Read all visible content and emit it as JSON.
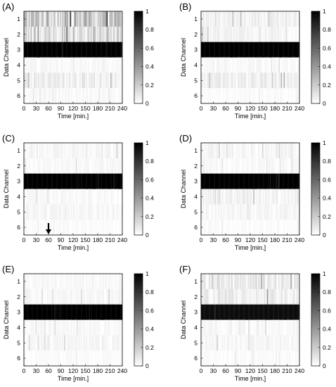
{
  "chart_data": [
    {
      "panel": "(A)",
      "type": "heatmap",
      "xlabel": "Time [min.]",
      "ylabel": "Data Channel",
      "x_ticks": [
        "0",
        "30",
        "60",
        "90",
        "120",
        "150",
        "180",
        "210",
        "240"
      ],
      "y_ticks": [
        "1",
        "2",
        "3",
        "4",
        "5",
        "6"
      ],
      "xlim": [
        0,
        240
      ],
      "channels": [
        1,
        2,
        3,
        4,
        5,
        6
      ],
      "colorbar": {
        "min": 0,
        "max": 1,
        "ticks": [
          "0",
          "0.2",
          "0.4",
          "0.6",
          "0.8",
          "1"
        ]
      },
      "channel_mean_intensity": [
        0.25,
        0.18,
        1.0,
        0.03,
        0.08,
        0.03
      ],
      "annotation": ""
    },
    {
      "panel": "(B)",
      "type": "heatmap",
      "xlabel": "Time [min.]",
      "ylabel": "Data Channel",
      "x_ticks": [
        "0",
        "30",
        "60",
        "90",
        "120",
        "150",
        "180",
        "210",
        "240"
      ],
      "y_ticks": [
        "1",
        "2",
        "3",
        "4",
        "5",
        "6"
      ],
      "xlim": [
        0,
        240
      ],
      "channels": [
        1,
        2,
        3,
        4,
        5,
        6
      ],
      "colorbar": {
        "min": 0,
        "max": 1,
        "ticks": [
          "0",
          "0.2",
          "0.4",
          "0.6",
          "0.8",
          "1"
        ]
      },
      "channel_mean_intensity": [
        0.06,
        0.05,
        1.0,
        0.03,
        0.07,
        0.02
      ],
      "annotation": ""
    },
    {
      "panel": "(C)",
      "type": "heatmap",
      "xlabel": "Time [min.]",
      "ylabel": "Data Channel",
      "x_ticks": [
        "0",
        "30",
        "60",
        "90",
        "120",
        "150",
        "180",
        "210",
        "240"
      ],
      "y_ticks": [
        "1",
        "2",
        "3",
        "4",
        "5",
        "6"
      ],
      "xlim": [
        0,
        240
      ],
      "channels": [
        1,
        2,
        3,
        4,
        5,
        6
      ],
      "colorbar": {
        "min": 0,
        "max": 1,
        "ticks": [
          "0",
          "0.2",
          "0.4",
          "0.6",
          "0.8",
          "1"
        ]
      },
      "channel_mean_intensity": [
        0.04,
        0.03,
        1.0,
        0.03,
        0.04,
        0.02
      ],
      "annotation": "downward arrow at 60 min"
    },
    {
      "panel": "(D)",
      "type": "heatmap",
      "xlabel": "Time [min.]",
      "ylabel": "Data Channel",
      "x_ticks": [
        "0",
        "30",
        "60",
        "90",
        "120",
        "150",
        "180",
        "210",
        "240"
      ],
      "y_ticks": [
        "1",
        "2",
        "3",
        "4",
        "5",
        "6"
      ],
      "xlim": [
        0,
        240
      ],
      "channels": [
        1,
        2,
        3,
        4,
        5,
        6
      ],
      "colorbar": {
        "min": 0,
        "max": 1,
        "ticks": [
          "0",
          "0.2",
          "0.4",
          "0.6",
          "0.8",
          "1"
        ]
      },
      "channel_mean_intensity": [
        0.04,
        0.03,
        1.0,
        0.06,
        0.04,
        0.02
      ],
      "annotation": ""
    },
    {
      "panel": "(E)",
      "type": "heatmap",
      "xlabel": "Time [min.]",
      "ylabel": "Data Channel",
      "x_ticks": [
        "0",
        "30",
        "60",
        "90",
        "120",
        "150",
        "180",
        "210",
        "240"
      ],
      "y_ticks": [
        "1",
        "2",
        "3",
        "4",
        "5",
        "6"
      ],
      "xlim": [
        0,
        240
      ],
      "channels": [
        1,
        2,
        3,
        4,
        5,
        6
      ],
      "colorbar": {
        "min": 0,
        "max": 1,
        "ticks": [
          "0",
          "0.2",
          "0.4",
          "0.6",
          "0.8",
          "1"
        ]
      },
      "channel_mean_intensity": [
        0.03,
        0.04,
        1.0,
        0.03,
        0.04,
        0.02
      ],
      "annotation": ""
    },
    {
      "panel": "(F)",
      "type": "heatmap",
      "xlabel": "Time [min.]",
      "ylabel": "Data Channel",
      "x_ticks": [
        "0",
        "30",
        "60",
        "90",
        "120",
        "150",
        "180",
        "210",
        "240"
      ],
      "y_ticks": [
        "1",
        "2",
        "3",
        "4",
        "5",
        "6"
      ],
      "xlim": [
        0,
        240
      ],
      "channels": [
        1,
        2,
        3,
        4,
        5,
        6
      ],
      "colorbar": {
        "min": 0,
        "max": 1,
        "ticks": [
          "0",
          "0.2",
          "0.4",
          "0.6",
          "0.8",
          "1"
        ]
      },
      "channel_mean_intensity": [
        0.1,
        0.08,
        0.95,
        0.03,
        0.04,
        0.02
      ],
      "annotation": ""
    }
  ]
}
